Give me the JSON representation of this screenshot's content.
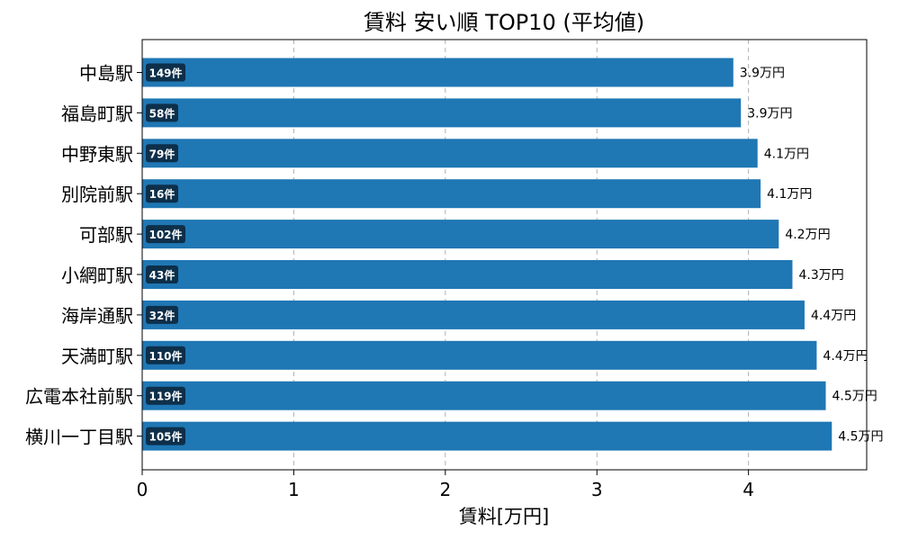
{
  "chart_data": {
    "type": "bar",
    "orientation": "horizontal",
    "title": "賃料 安い順 TOP10 (平均値)",
    "xlabel": "賃料[万円]",
    "ylabel": "",
    "xlim": [
      0,
      4.78
    ],
    "xticks": [
      0,
      1,
      2,
      3,
      4
    ],
    "grid": "x-dashed",
    "bar_color": "#1f77b4",
    "badge_color": "#0d2f4a",
    "categories": [
      "中島駅",
      "福島町駅",
      "中野東駅",
      "別院前駅",
      "可部駅",
      "小網町駅",
      "海岸通駅",
      "天満町駅",
      "広電本社前駅",
      "横川一丁目駅"
    ],
    "values": [
      3.9,
      3.95,
      4.06,
      4.08,
      4.2,
      4.29,
      4.37,
      4.45,
      4.51,
      4.55
    ],
    "value_labels": [
      "3.9万円",
      "3.9万円",
      "4.1万円",
      "4.1万円",
      "4.2万円",
      "4.3万円",
      "4.4万円",
      "4.4万円",
      "4.5万円",
      "4.5万円"
    ],
    "count_labels": [
      "149件",
      "58件",
      "79件",
      "16件",
      "102件",
      "43件",
      "32件",
      "110件",
      "119件",
      "105件"
    ]
  }
}
